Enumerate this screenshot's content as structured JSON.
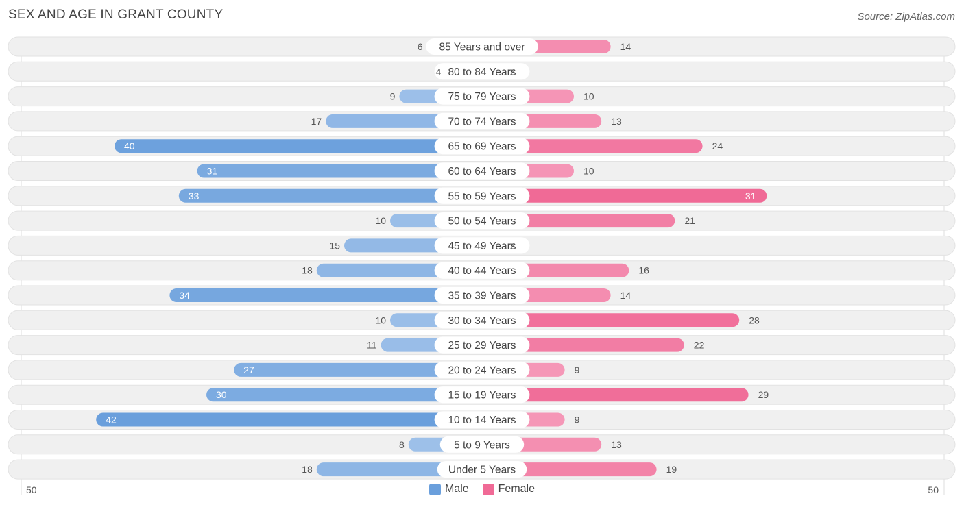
{
  "header": {
    "title": "SEX AND AGE IN GRANT COUNTY",
    "source": "Source: ZipAtlas.com"
  },
  "colors": {
    "male_dark": "#6a9fdc",
    "male_light": "#a9c8ec",
    "female_dark": "#f06a96",
    "female_light": "#f7aac5",
    "track": "#eeeeee"
  },
  "chart_data": {
    "type": "bar",
    "orientation": "horizontal-diverging",
    "categories": [
      "85 Years and over",
      "80 to 84 Years",
      "75 to 79 Years",
      "70 to 74 Years",
      "65 to 69 Years",
      "60 to 64 Years",
      "55 to 59 Years",
      "50 to 54 Years",
      "45 to 49 Years",
      "40 to 44 Years",
      "35 to 39 Years",
      "30 to 34 Years",
      "25 to 29 Years",
      "20 to 24 Years",
      "15 to 19 Years",
      "10 to 14 Years",
      "5 to 9 Years",
      "Under 5 Years"
    ],
    "series": [
      {
        "name": "Male",
        "values": [
          6,
          4,
          9,
          17,
          40,
          31,
          33,
          10,
          15,
          18,
          34,
          10,
          11,
          27,
          30,
          42,
          8,
          18
        ]
      },
      {
        "name": "Female",
        "values": [
          14,
          2,
          10,
          13,
          24,
          10,
          31,
          21,
          2,
          16,
          14,
          28,
          22,
          9,
          29,
          9,
          13,
          19
        ]
      }
    ],
    "xlim": [
      -50,
      50
    ],
    "axis_labels": {
      "left": "50",
      "right": "50"
    },
    "legend_placement": "bottom-center"
  }
}
